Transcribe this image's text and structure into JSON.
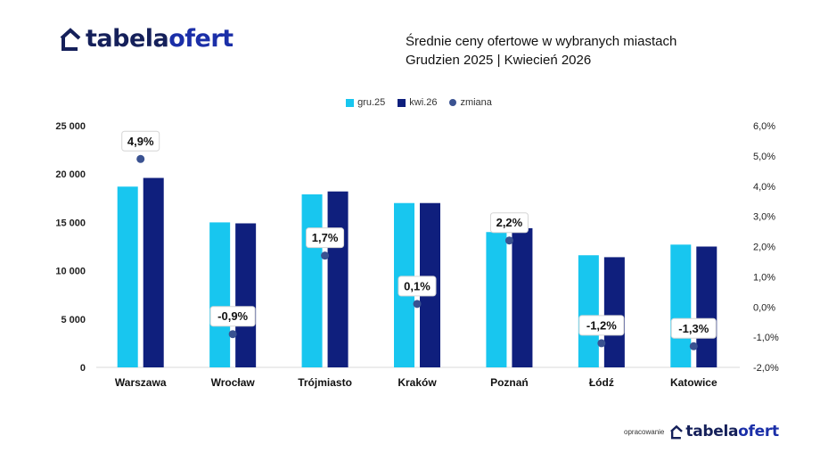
{
  "brand": {
    "logo_part1": "tabela",
    "logo_part2": "ofert"
  },
  "header": {
    "title_line1": "Średnie ceny ofertowe w wybranych miastach",
    "title_line2": "Grudzien 2025  | Kwiecień  2026"
  },
  "footer": {
    "label": "opracowanie"
  },
  "colors": {
    "gru25": "#18c6ef",
    "kwi26": "#0f1f7d",
    "zmiana": "#3a5291"
  },
  "chart_data": {
    "type": "bar",
    "categories": [
      "Warszawa",
      "Wrocław",
      "Trójmiasto",
      "Kraków",
      "Poznań",
      "Łódź",
      "Katowice"
    ],
    "series": [
      {
        "name": "gru.25",
        "axis": "left",
        "values": [
          18700,
          15000,
          17900,
          17000,
          14000,
          11600,
          12700
        ]
      },
      {
        "name": "kwi.26",
        "axis": "left",
        "values": [
          19600,
          14900,
          18200,
          17000,
          14400,
          11400,
          12500
        ]
      },
      {
        "name": "zmiana",
        "axis": "right",
        "type": "scatter",
        "values": [
          4.9,
          -0.9,
          1.7,
          0.1,
          2.2,
          -1.2,
          -1.3
        ]
      }
    ],
    "data_labels": [
      "4,9%",
      "-0,9%",
      "1,7%",
      "0,1%",
      "2,2%",
      "-1,2%",
      "-1,3%"
    ],
    "y_left": {
      "ylim": [
        0,
        25000
      ],
      "ticks": [
        0,
        5000,
        10000,
        15000,
        20000,
        25000
      ],
      "tick_labels": [
        "0",
        "5 000",
        "10 000",
        "15 000",
        "20 000",
        "25 000"
      ]
    },
    "y_right": {
      "ylim": [
        -2,
        6
      ],
      "ticks": [
        -2,
        -1,
        0,
        1,
        2,
        3,
        4,
        5,
        6
      ],
      "tick_labels": [
        "-2,0%",
        "-1,0%",
        "0,0%",
        "1,0%",
        "2,0%",
        "3,0%",
        "4,0%",
        "5,0%",
        "6,0%"
      ]
    },
    "legend_position": "top-center",
    "grid": false
  }
}
